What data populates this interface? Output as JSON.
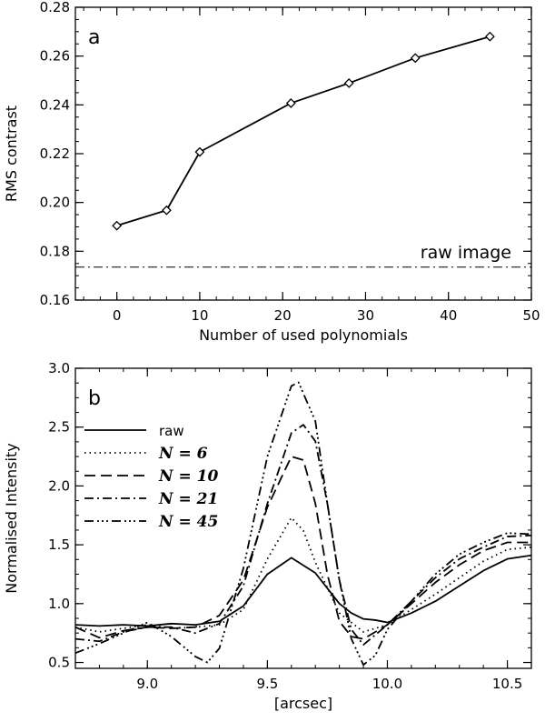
{
  "chart_data": [
    {
      "panel": "a",
      "type": "line",
      "title": "",
      "xlabel": "Number of used polynomials",
      "ylabel": "RMS contrast",
      "xlim": [
        -5,
        50
      ],
      "ylim": [
        0.16,
        0.28
      ],
      "xticks": [
        0,
        10,
        20,
        30,
        40,
        50
      ],
      "yticks": [
        0.16,
        0.18,
        0.2,
        0.22,
        0.24,
        0.26,
        0.28
      ],
      "xtick_labels": [
        "0",
        "10",
        "20",
        "30",
        "40",
        "50"
      ],
      "ytick_labels": [
        "0.16",
        "0.18",
        "0.20",
        "0.22",
        "0.24",
        "0.26",
        "0.28"
      ],
      "grid": false,
      "series": [
        {
          "x": [
            0,
            6,
            10,
            21,
            28,
            36,
            45
          ],
          "y": [
            0.1905,
            0.1968,
            0.2207,
            0.2407,
            0.2489,
            0.2592,
            0.268
          ],
          "marker": "diamond",
          "line": "solid"
        }
      ],
      "reference_line": {
        "y": 0.1735,
        "style": "dash-dot",
        "label": "raw image"
      }
    },
    {
      "panel": "b",
      "type": "line",
      "title": "",
      "xlabel": "[arcsec]",
      "ylabel": "Normalised Intensity",
      "xlim": [
        8.7,
        10.6
      ],
      "ylim": [
        0.45,
        3.0
      ],
      "xticks": [
        9.0,
        9.5,
        10.0,
        10.5
      ],
      "yticks": [
        0.5,
        1.0,
        1.5,
        2.0,
        2.5,
        3.0
      ],
      "xtick_labels": [
        "9.0",
        "9.5",
        "10.0",
        "10.5"
      ],
      "ytick_labels": [
        "0.5",
        "1.0",
        "1.5",
        "2.0",
        "2.5",
        "3.0"
      ],
      "grid": false,
      "legend_position": "top-left",
      "series": [
        {
          "name": "raw",
          "dash": "solid",
          "x": [
            8.7,
            8.8,
            8.9,
            9.0,
            9.1,
            9.2,
            9.3,
            9.4,
            9.5,
            9.6,
            9.7,
            9.8,
            9.85,
            9.9,
            9.95,
            10.0,
            10.1,
            10.2,
            10.3,
            10.4,
            10.5,
            10.6
          ],
          "y": [
            0.82,
            0.81,
            0.82,
            0.81,
            0.83,
            0.82,
            0.85,
            0.98,
            1.25,
            1.39,
            1.26,
            1.0,
            0.92,
            0.87,
            0.86,
            0.84,
            0.92,
            1.02,
            1.15,
            1.28,
            1.38,
            1.41
          ]
        },
        {
          "name": "N = 6",
          "dash": "dotted",
          "x": [
            8.7,
            8.8,
            8.9,
            9.0,
            9.1,
            9.2,
            9.3,
            9.4,
            9.5,
            9.6,
            9.65,
            9.7,
            9.8,
            9.9,
            10.0,
            10.1,
            10.2,
            10.3,
            10.4,
            10.5,
            10.6
          ],
          "y": [
            0.8,
            0.76,
            0.79,
            0.82,
            0.79,
            0.8,
            0.82,
            0.95,
            1.38,
            1.73,
            1.62,
            1.35,
            0.92,
            0.76,
            0.82,
            0.95,
            1.08,
            1.22,
            1.36,
            1.46,
            1.48
          ]
        },
        {
          "name": "N = 10",
          "dash": "long-dash",
          "x": [
            8.7,
            8.8,
            8.9,
            9.0,
            9.1,
            9.2,
            9.3,
            9.4,
            9.5,
            9.6,
            9.65,
            9.7,
            9.75,
            9.8,
            9.85,
            9.9,
            10.0,
            10.1,
            10.2,
            10.3,
            10.4,
            10.5,
            10.6
          ],
          "y": [
            0.8,
            0.71,
            0.77,
            0.8,
            0.79,
            0.8,
            0.9,
            1.2,
            1.82,
            2.25,
            2.22,
            1.85,
            1.25,
            0.85,
            0.72,
            0.7,
            0.82,
            1.0,
            1.18,
            1.33,
            1.45,
            1.52,
            1.52
          ]
        },
        {
          "name": "N = 21",
          "dash": "dash-dot",
          "x": [
            8.7,
            8.8,
            8.9,
            9.0,
            9.1,
            9.2,
            9.3,
            9.4,
            9.5,
            9.6,
            9.65,
            9.7,
            9.75,
            9.8,
            9.85,
            9.9,
            10.0,
            10.1,
            10.2,
            10.3,
            10.4,
            10.5,
            10.6
          ],
          "y": [
            0.7,
            0.68,
            0.76,
            0.8,
            0.8,
            0.75,
            0.83,
            1.15,
            1.85,
            2.45,
            2.52,
            2.38,
            1.85,
            1.2,
            0.78,
            0.65,
            0.82,
            1.02,
            1.22,
            1.38,
            1.48,
            1.57,
            1.58
          ]
        },
        {
          "name": "N = 45",
          "dash": "dash-dot-dot",
          "x": [
            8.7,
            8.8,
            8.9,
            9.0,
            9.1,
            9.2,
            9.25,
            9.3,
            9.4,
            9.5,
            9.6,
            9.63,
            9.7,
            9.75,
            9.8,
            9.85,
            9.9,
            9.95,
            10.0,
            10.1,
            10.2,
            10.3,
            10.4,
            10.5,
            10.6
          ],
          "y": [
            0.58,
            0.66,
            0.75,
            0.84,
            0.72,
            0.55,
            0.5,
            0.62,
            1.3,
            2.25,
            2.85,
            2.88,
            2.55,
            1.85,
            1.2,
            0.7,
            0.48,
            0.56,
            0.78,
            1.02,
            1.25,
            1.42,
            1.52,
            1.6,
            1.59
          ]
        }
      ]
    }
  ]
}
